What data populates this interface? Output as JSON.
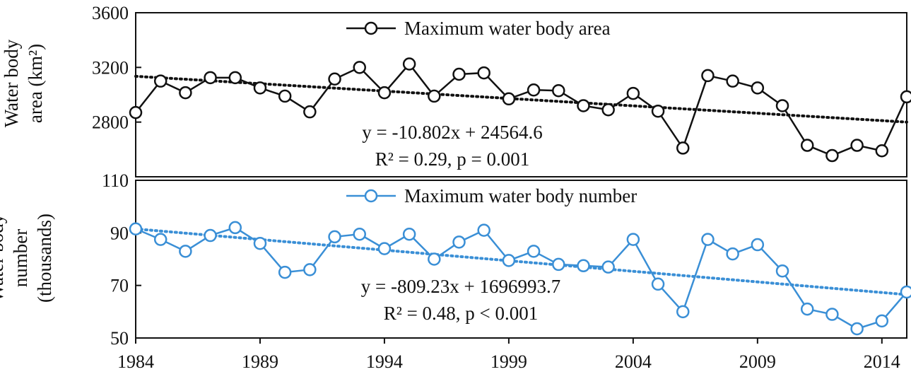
{
  "chart_data": [
    {
      "type": "line",
      "ylabel": [
        "Water body",
        "area (km²)"
      ],
      "ylim": [
        2400,
        3600
      ],
      "yticks": [
        {
          "value": 2800,
          "label": "2800"
        },
        {
          "value": 3200,
          "label": "3200"
        },
        {
          "value": 3600,
          "label": "3600"
        }
      ],
      "legend": {
        "label": "Maximum water body area",
        "position": "top-center"
      },
      "series": [
        {
          "name": "Maximum water body area",
          "color": "#111111",
          "x": [
            1984,
            1985,
            1986,
            1987,
            1988,
            1989,
            1990,
            1991,
            1992,
            1993,
            1994,
            1995,
            1996,
            1997,
            1998,
            1999,
            2000,
            2001,
            2002,
            2003,
            2004,
            2005,
            2006,
            2007,
            2008,
            2009,
            2010,
            2011,
            2012,
            2013,
            2014,
            2015
          ],
          "values": [
            2870,
            3100,
            3015,
            3125,
            3125,
            3050,
            2990,
            2875,
            3115,
            3200,
            3015,
            3225,
            2990,
            3150,
            3160,
            2970,
            3035,
            3030,
            2920,
            2890,
            3010,
            2880,
            2610,
            3140,
            3100,
            3050,
            2920,
            2630,
            2555,
            2630,
            2590,
            2985
          ]
        }
      ],
      "trendline": {
        "x": [
          1984,
          2015
        ],
        "y": [
          3135,
          2800
        ],
        "style": "dotted",
        "color": "#111111"
      },
      "annotations": [
        "y = -10.802x + 24564.6",
        "R² = 0.29, p = 0.001"
      ]
    },
    {
      "type": "line",
      "ylabel": [
        "Water body",
        "number",
        "(thousands)"
      ],
      "ylim": [
        50,
        110
      ],
      "yticks": [
        {
          "value": 50,
          "label": "50"
        },
        {
          "value": 70,
          "label": "70"
        },
        {
          "value": 90,
          "label": "90"
        },
        {
          "value": 110,
          "label": "110"
        }
      ],
      "legend": {
        "label": "Maximum water  body number",
        "position": "top-center"
      },
      "series": [
        {
          "name": "Maximum water  body number",
          "color": "#3a8fd6",
          "x": [
            1984,
            1985,
            1986,
            1987,
            1988,
            1989,
            1990,
            1991,
            1992,
            1993,
            1994,
            1995,
            1996,
            1997,
            1998,
            1999,
            2000,
            2001,
            2002,
            2003,
            2004,
            2005,
            2006,
            2007,
            2008,
            2009,
            2010,
            2011,
            2012,
            2013,
            2014,
            2015
          ],
          "values": [
            91.5,
            87.5,
            83,
            89,
            92,
            86,
            75,
            76,
            88.5,
            89.5,
            84,
            89.5,
            80,
            86.5,
            91,
            79.5,
            83,
            78,
            77.5,
            77,
            87.5,
            70.5,
            60,
            87.5,
            82,
            85.5,
            75.5,
            61,
            59,
            53.5,
            56.5,
            67.5
          ]
        }
      ],
      "trendline": {
        "x": [
          1984,
          2015
        ],
        "y": [
          91.5,
          66.5
        ],
        "style": "dotted",
        "color": "#3a8fd6"
      },
      "annotations": [
        "y = -809.23x + 1696993.7",
        "R² = 0.48, p < 0.001"
      ]
    }
  ],
  "x_axis": {
    "xlim": [
      1984,
      2015
    ],
    "tick_values": [
      1984,
      1989,
      1994,
      1999,
      2004,
      2009,
      2014
    ],
    "tick_labels": [
      "1984",
      "1989",
      "1994",
      "1999",
      "2004",
      "2009",
      "2014"
    ]
  }
}
